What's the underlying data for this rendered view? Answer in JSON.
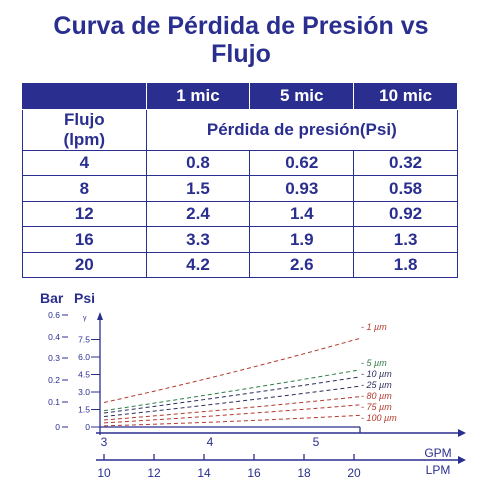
{
  "title_line1": "Curva de Pérdida de Presión vs",
  "title_line2": "Flujo",
  "table": {
    "headers": [
      "",
      "1 mic",
      "5 mic",
      "10 mic"
    ],
    "subheader_flow_line1": "Flujo",
    "subheader_flow_line2": "(lpm)",
    "subheader_loss": "Pérdida de presión(Psi)",
    "rows": [
      [
        "4",
        "0.8",
        "0.62",
        "0.32"
      ],
      [
        "8",
        "1.5",
        "0.93",
        "0.58"
      ],
      [
        "12",
        "2.4",
        "1.4",
        "0.92"
      ],
      [
        "16",
        "3.3",
        "1.9",
        "1.3"
      ],
      [
        "20",
        "4.2",
        "2.6",
        "1.8"
      ]
    ]
  },
  "chart_data": {
    "type": "line",
    "y_label_bar": "Bar",
    "y_label_psi": "Psi",
    "y_unit_mark": "γ",
    "bar_ticks": [
      "0.6",
      "0.4",
      "0.3",
      "0.2",
      "0.1",
      "0"
    ],
    "psi_ticks": [
      "7.5",
      "6.0",
      "4.5",
      "3.0",
      "1.5",
      "0"
    ],
    "gpm_ticks": [
      "3",
      "4",
      "5"
    ],
    "gpm_label": "GPM",
    "lpm_ticks": [
      "10",
      "12",
      "14",
      "16",
      "18",
      "20"
    ],
    "lpm_label": "LPM",
    "x": [
      10,
      20
    ],
    "series": [
      {
        "name": "1 µm",
        "color": "#b23a2e",
        "values": [
          2.1,
          7.6
        ]
      },
      {
        "name": "5 µm",
        "color": "#2e7d4a",
        "values": [
          1.4,
          4.9
        ]
      },
      {
        "name": "10 µm",
        "color": "#2a2f5a",
        "values": [
          1.2,
          4.3
        ]
      },
      {
        "name": "25 µm",
        "color": "#2a2f5a",
        "values": [
          0.9,
          3.5
        ]
      },
      {
        "name": "80 µm",
        "color": "#b23a2e",
        "values": [
          0.6,
          2.6
        ]
      },
      {
        "name": "75 µm",
        "color": "#b23a2e",
        "values": [
          0.35,
          1.9
        ]
      },
      {
        "name": "100 µm",
        "color": "#b23a2e",
        "values": [
          0.1,
          1.0
        ]
      }
    ]
  }
}
